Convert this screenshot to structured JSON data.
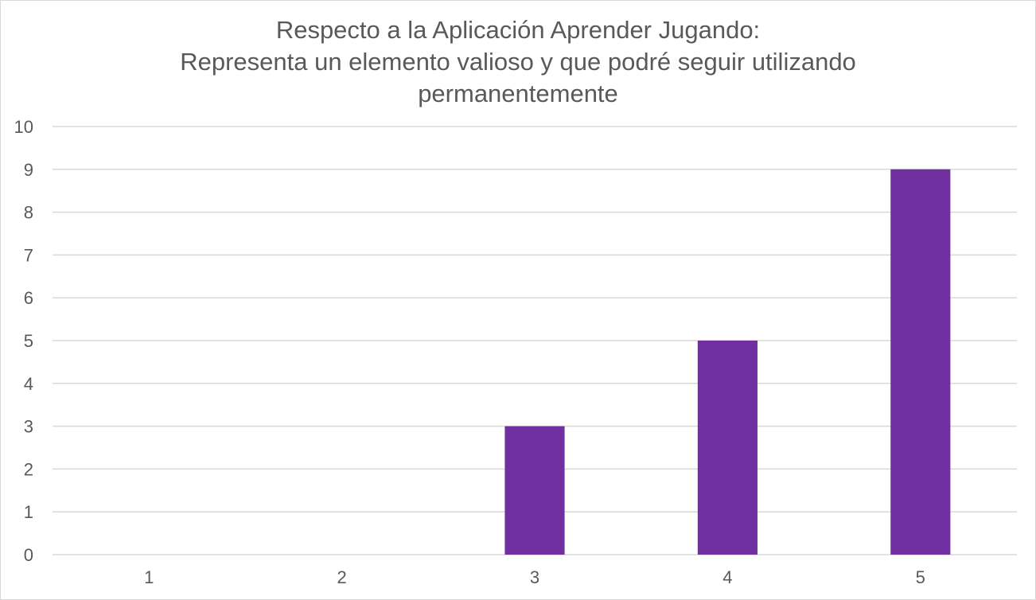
{
  "chart_data": {
    "type": "bar",
    "title_lines": [
      "Respecto a la Aplicación Aprender Jugando:",
      "Representa un elemento valioso y que podré seguir utilizando",
      "permanentemente"
    ],
    "categories": [
      "1",
      "2",
      "3",
      "4",
      "5"
    ],
    "values": [
      0,
      0,
      3,
      5,
      9
    ],
    "xlabel": "",
    "ylabel": "",
    "ylim": [
      0,
      10
    ],
    "yticks": [
      "0",
      "1",
      "2",
      "3",
      "4",
      "5",
      "6",
      "7",
      "8",
      "9",
      "10"
    ],
    "grid": true,
    "legend": "none",
    "bar_color": "#7030a0",
    "grid_color": "#d9d9d9",
    "text_color": "#595959"
  }
}
